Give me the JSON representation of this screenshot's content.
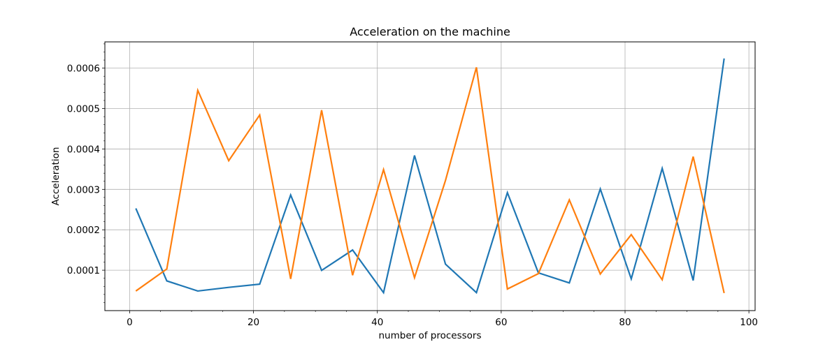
{
  "chart_data": {
    "type": "line",
    "title": "Acceleration on the machine",
    "xlabel": "number of processors",
    "ylabel": "Acceleration",
    "xlim": [
      -4,
      101
    ],
    "ylim": [
      0.0,
      0.000665
    ],
    "xticks": [
      0,
      20,
      40,
      60,
      80,
      100
    ],
    "xtick_labels": [
      "0",
      "20",
      "40",
      "60",
      "80",
      "100"
    ],
    "yticks": [
      0.0001,
      0.0002,
      0.0003,
      0.0004,
      0.0005,
      0.0006
    ],
    "ytick_labels": [
      "0.0001",
      "0.0002",
      "0.0003",
      "0.0004",
      "0.0005",
      "0.0006"
    ],
    "grid": true,
    "x": [
      1,
      6,
      11,
      16,
      21,
      26,
      31,
      36,
      41,
      46,
      51,
      56,
      61,
      66,
      71,
      76,
      81,
      86,
      91,
      96
    ],
    "series": [
      {
        "color": "#1f77b4",
        "values": [
          0.000253,
          7.35e-05,
          4.85e-05,
          5.75e-05,
          6.55e-05,
          0.000286,
          9.95e-05,
          0.00015,
          4.45e-05,
          0.000384,
          0.000115,
          4.45e-05,
          0.000292,
          9.35e-05,
          6.85e-05,
          0.000301,
          7.85e-05,
          0.000352,
          7.45e-05,
          0.000624
        ]
      },
      {
        "color": "#ff7f0e",
        "values": [
          4.85e-05,
          0.000103,
          0.000545,
          0.000371,
          0.000484,
          7.85e-05,
          0.000496,
          8.75e-05,
          0.000349,
          8.15e-05,
          0.000322,
          0.000602,
          5.35e-05,
          9.15e-05,
          0.000274,
          9.05e-05,
          0.000188,
          7.65e-05,
          0.000381,
          4.35e-05
        ]
      }
    ]
  }
}
